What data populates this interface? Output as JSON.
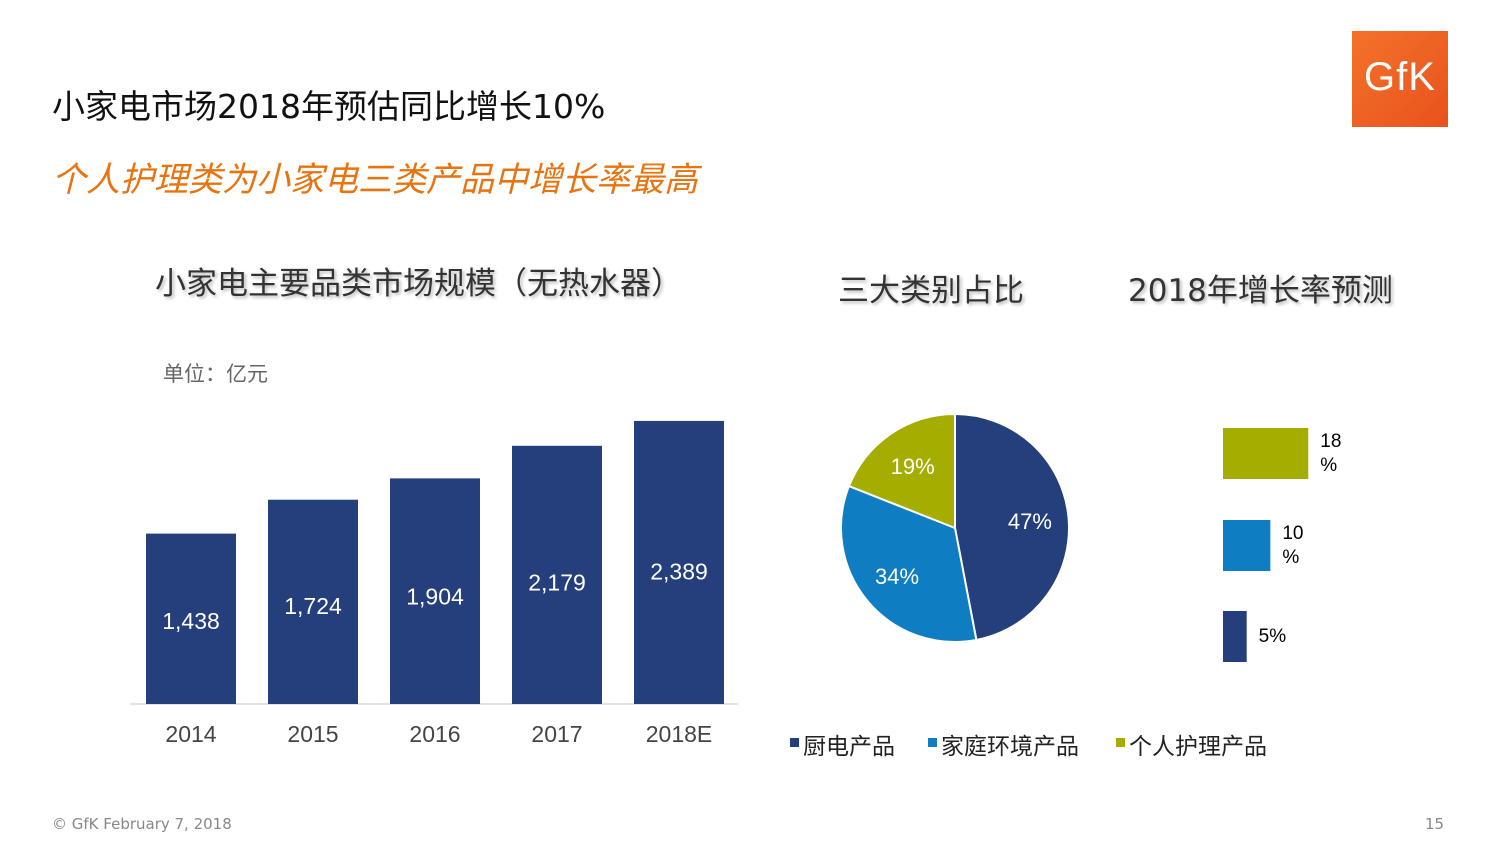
{
  "header": {
    "title": "小家电市场2018年预估同比增长10%",
    "subtitle": "个人护理类为小家电三类产品中增长率最高"
  },
  "logo_text": "GfK",
  "footer": {
    "text": "© GfK February 7, 2018",
    "page": "15"
  },
  "colors": {
    "navy": "#253f7d",
    "blue": "#0e7dc2",
    "olive": "#a4ad00",
    "accent": "#e8730f"
  },
  "chart_data": [
    {
      "type": "bar",
      "title": "小家电主要品类市场规模（无热水器）",
      "unit": "单位：亿元",
      "categories": [
        "2014",
        "2015",
        "2016",
        "2017",
        "2018E"
      ],
      "values": [
        1438,
        1724,
        1904,
        2179,
        2389
      ],
      "value_labels": [
        "1,438",
        "1,724",
        "1,904",
        "2,179",
        "2,389"
      ],
      "ylim": [
        0,
        2650
      ],
      "color": "#253f7d"
    },
    {
      "type": "pie",
      "title": "三大类别占比",
      "slices": [
        {
          "name": "厨电产品",
          "value": 47,
          "label": "47%",
          "color": "#253f7d"
        },
        {
          "name": "家庭环境产品",
          "value": 34,
          "label": "34%",
          "color": "#0e7dc2"
        },
        {
          "name": "个人护理产品",
          "value": 19,
          "label": "19%",
          "color": "#a4ad00"
        }
      ],
      "legend": [
        "厨电产品",
        "家庭环境产品",
        "个人护理产品"
      ],
      "legend_position": "bottom"
    },
    {
      "type": "bar",
      "orientation": "horizontal",
      "title": "2018年增长率预测",
      "categories": [
        "个人护理产品",
        "家庭环境产品",
        "厨电产品"
      ],
      "values": [
        18,
        10,
        5
      ],
      "value_labels": [
        [
          "18",
          "%"
        ],
        [
          "10",
          "%"
        ],
        [
          "5%"
        ]
      ],
      "colors": [
        "#a4ad00",
        "#0e7dc2",
        "#253f7d"
      ],
      "xlim": [
        0,
        19
      ]
    }
  ]
}
